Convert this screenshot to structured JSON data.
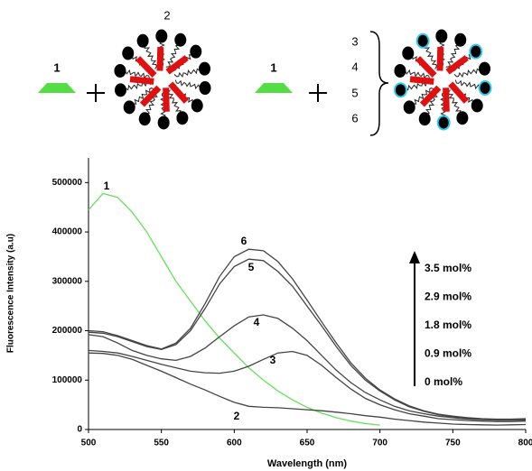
{
  "scheme": {
    "labels": [
      "1",
      "2",
      "1",
      "3",
      "4",
      "5",
      "6"
    ]
  },
  "chart_data": {
    "type": "line",
    "xlabel": "Wavelength (nm)",
    "ylabel": "Fluorescence Intensity (a.u)",
    "x": [
      500,
      510,
      520,
      530,
      540,
      550,
      560,
      570,
      580,
      590,
      600,
      610,
      620,
      630,
      640,
      650,
      660,
      670,
      680,
      690,
      700,
      710,
      720,
      730,
      740,
      750,
      760,
      770,
      780,
      790,
      800
    ],
    "xlim": [
      500,
      800
    ],
    "xticks": [
      500,
      550,
      600,
      650,
      700,
      750,
      800
    ],
    "ylim": [
      0,
      550000
    ],
    "yticks": [
      0,
      100000,
      200000,
      300000,
      400000,
      500000
    ],
    "series": [
      {
        "name": "1",
        "color": "#66e05a",
        "values": [
          445000,
          478000,
          470000,
          440000,
          400000,
          350000,
          300000,
          260000,
          220000,
          185000,
          155000,
          125000,
          100000,
          78000,
          60000,
          45000,
          33000,
          24000,
          17000,
          12000,
          9000,
          null,
          null,
          null,
          null,
          null,
          null,
          null,
          null,
          null,
          null
        ]
      },
      {
        "name": "2",
        "color": "#444444",
        "values": [
          155000,
          154000,
          150000,
          142000,
          130000,
          118000,
          105000,
          92000,
          80000,
          67000,
          55000,
          47000,
          45000,
          44000,
          42000,
          40000,
          38000,
          35000,
          32000,
          28000,
          25000,
          21000,
          18000,
          15000,
          13000,
          11000,
          10000,
          9500,
          9000,
          9500,
          10000
        ]
      },
      {
        "name": "3",
        "color": "#444444",
        "values": [
          160000,
          158000,
          155000,
          148000,
          140000,
          132000,
          125000,
          118000,
          115000,
          114000,
          118000,
          128000,
          142000,
          155000,
          158000,
          150000,
          130000,
          105000,
          82000,
          63000,
          50000,
          40000,
          32000,
          27000,
          22000,
          20000,
          18000,
          17000,
          16000,
          16000,
          17000
        ]
      },
      {
        "name": "4",
        "color": "#444444",
        "values": [
          192000,
          188000,
          175000,
          160000,
          150000,
          143000,
          140000,
          148000,
          165000,
          188000,
          210000,
          228000,
          232000,
          225000,
          205000,
          180000,
          150000,
          120000,
          95000,
          75000,
          60000,
          47000,
          38000,
          32000,
          27000,
          24000,
          21000,
          20000,
          19000,
          19000,
          19000
        ]
      },
      {
        "name": "5",
        "color": "#444444",
        "values": [
          197000,
          195000,
          188000,
          178000,
          168000,
          162000,
          172000,
          200000,
          245000,
          295000,
          330000,
          345000,
          342000,
          320000,
          290000,
          250000,
          210000,
          168000,
          130000,
          100000,
          78000,
          60000,
          46000,
          37000,
          30000,
          26000,
          23000,
          21000,
          20000,
          20000,
          21000
        ]
      },
      {
        "name": "6",
        "color": "#444444",
        "values": [
          200000,
          198000,
          190000,
          180000,
          170000,
          163000,
          175000,
          205000,
          255000,
          310000,
          350000,
          365000,
          362000,
          340000,
          305000,
          262000,
          218000,
          175000,
          135000,
          104000,
          80000,
          62000,
          48000,
          38000,
          31000,
          27000,
          24000,
          22000,
          21000,
          21000,
          22000
        ]
      }
    ],
    "annotations": [
      "3.5 mol%",
      "2.9 mol%",
      "1.8 mol%",
      "0.9 mol%",
      "0 mol%"
    ]
  }
}
